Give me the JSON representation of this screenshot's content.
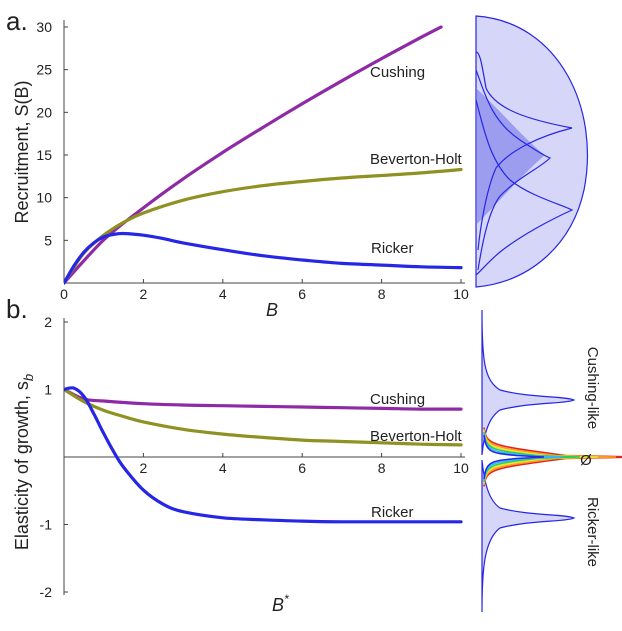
{
  "chart_data": [
    {
      "type": "line",
      "panel_label": "a.",
      "xlabel": "B",
      "ylabel": "Recruitment, S(B)",
      "xlim": [
        0,
        10
      ],
      "ylim": [
        0,
        30
      ],
      "xticks": [
        0,
        2,
        4,
        6,
        8,
        10
      ],
      "yticks": [
        5,
        10,
        15,
        20,
        25,
        30
      ],
      "series": [
        {
          "name": "Cushing",
          "color": "#8e2aa6",
          "x": [
            0,
            1,
            2,
            3,
            4,
            5,
            6,
            7,
            8,
            9,
            9.5
          ],
          "y": [
            0,
            5.05,
            8.8,
            12.2,
            15.3,
            18.2,
            21.0,
            23.7,
            26.3,
            28.8,
            30.0
          ]
        },
        {
          "name": "Beverton-Holt",
          "color": "#8f9122",
          "x": [
            0,
            0.5,
            1,
            1.5,
            2,
            3,
            4,
            5,
            6,
            7,
            8,
            9,
            10
          ],
          "y": [
            0,
            3.5,
            5.6,
            7.1,
            8.2,
            9.7,
            10.7,
            11.4,
            11.9,
            12.3,
            12.6,
            12.9,
            13.3
          ]
        },
        {
          "name": "Ricker",
          "color": "#2626e6",
          "x": [
            0,
            0.25,
            0.5,
            0.75,
            1,
            1.25,
            1.5,
            2,
            2.5,
            3,
            4,
            5,
            6,
            7,
            8,
            9,
            10
          ],
          "y": [
            0,
            2.0,
            3.6,
            4.7,
            5.4,
            5.7,
            5.8,
            5.6,
            5.2,
            4.7,
            3.9,
            3.2,
            2.7,
            2.3,
            2.1,
            1.9,
            1.8
          ]
        }
      ],
      "side_distribution": {
        "envelope_color": "#d6d6f8",
        "peak_color": "#6a6ae8"
      }
    },
    {
      "type": "line",
      "panel_label": "b.",
      "xlabel": "B",
      "xlabel_superscript": "*",
      "ylabel": "Elasticity of growth, s",
      "ylabel_subscript": "b",
      "xlim": [
        0,
        10
      ],
      "ylim": [
        -2,
        2
      ],
      "xticks": [
        2,
        4,
        6,
        8,
        10
      ],
      "yticks": [
        2,
        1,
        -1,
        -2
      ],
      "series": [
        {
          "name": "Cushing",
          "color": "#8e2aa6",
          "x": [
            0,
            0.5,
            1,
            2,
            3,
            4,
            5,
            6,
            7,
            8,
            9,
            10
          ],
          "y": [
            1.0,
            0.86,
            0.83,
            0.79,
            0.77,
            0.76,
            0.75,
            0.74,
            0.73,
            0.72,
            0.71,
            0.71
          ]
        },
        {
          "name": "Beverton-Holt",
          "color": "#8f9122",
          "x": [
            0,
            0.5,
            1,
            1.5,
            2,
            3,
            4,
            5,
            6,
            7,
            8,
            9,
            10
          ],
          "y": [
            1.0,
            0.82,
            0.69,
            0.6,
            0.52,
            0.41,
            0.34,
            0.29,
            0.25,
            0.23,
            0.21,
            0.19,
            0.18
          ]
        },
        {
          "name": "Ricker",
          "color": "#2626e6",
          "x": [
            0,
            0.25,
            0.5,
            0.75,
            1,
            1.25,
            1.5,
            2,
            2.5,
            3,
            4,
            5,
            6,
            7,
            8,
            9,
            10
          ],
          "y": [
            1.0,
            1.02,
            0.9,
            0.64,
            0.35,
            0.08,
            -0.15,
            -0.49,
            -0.7,
            -0.81,
            -0.9,
            -0.93,
            -0.95,
            -0.96,
            -0.96,
            -0.96,
            -0.96
          ]
        }
      ],
      "side_labels": {
        "upper": "Cushing-like",
        "middle": "Ø",
        "lower": "Ricker-like"
      },
      "side_distribution": {
        "fill_color": "#d6d6f8",
        "line_color": "#2626e6",
        "spectrum": [
          "#2626e6",
          "#2fb8ff",
          "#2fcc55",
          "#e6e62a",
          "#ff9a1a",
          "#e62222"
        ]
      }
    }
  ]
}
